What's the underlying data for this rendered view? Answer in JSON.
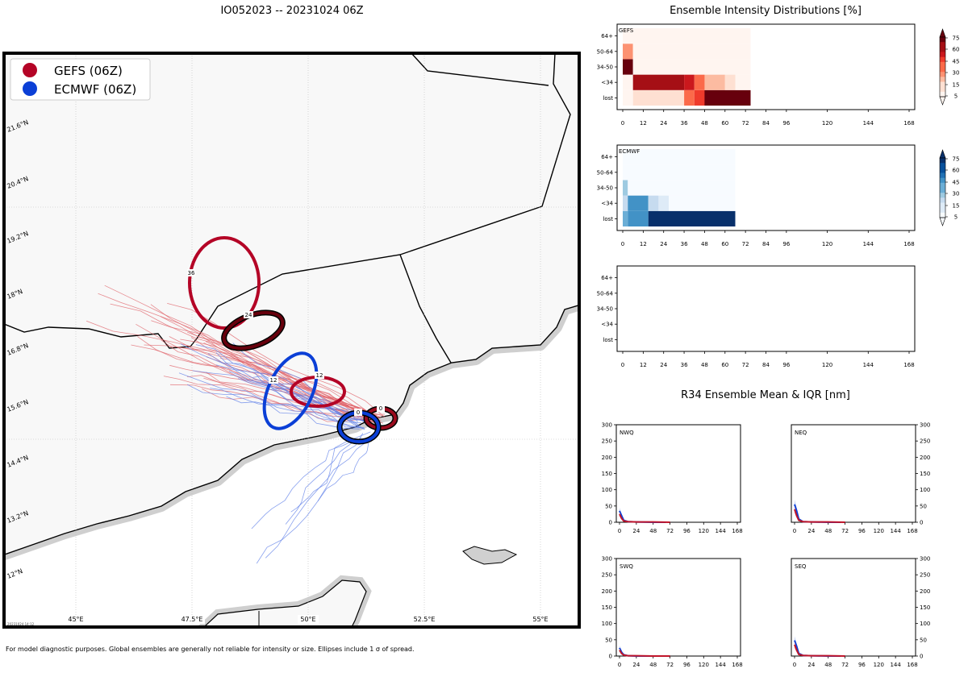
{
  "title": "IO052023 -- 20231024 06Z",
  "footer_note": "For model diagnostic purposes. Global ensembles are generally not reliable for intensity or size. Ellipses include 1 σ of spread.",
  "map": {
    "timestamp": "20231024 14:12",
    "legend": [
      {
        "label": "GEFS (06Z)",
        "color": "#b40426"
      },
      {
        "label": "ECMWF (06Z)",
        "color": "#0b3fd6"
      }
    ],
    "lat_labels": [
      "21.6°N",
      "20.4°N",
      "19.2°N",
      "18°N",
      "16.8°N",
      "15.6°N",
      "14.4°N",
      "13.2°N",
      "12°N"
    ],
    "lon_labels": [
      "45°E",
      "47.5°E",
      "50°E",
      "52.5°E",
      "55°E"
    ],
    "ellipse_labels": {
      "gefs": [
        "0",
        "12",
        "24",
        "36"
      ],
      "ecmwf": [
        "0",
        "12"
      ]
    }
  },
  "chart_data": [
    {
      "type": "heatmap",
      "title": "Ensemble Intensity Distributions [%]",
      "panel": "GEFS",
      "x_ticks": [
        "0",
        "12",
        "24",
        "36",
        "48",
        "60",
        "72",
        "84",
        "96",
        "120",
        "144",
        "168"
      ],
      "y_categories": [
        "lost",
        "<34",
        "34-50",
        "50-64",
        "64+"
      ],
      "colorbar_ticks": [
        "5",
        "15",
        "30",
        "45",
        "60",
        "75"
      ],
      "cmap": "Reds",
      "cells": [
        {
          "t0": 0,
          "t1": 6,
          "cat": "lost",
          "value": 2
        },
        {
          "t0": 6,
          "t1": 36,
          "cat": "lost",
          "value": 10
        },
        {
          "t0": 36,
          "t1": 42,
          "cat": "lost",
          "value": 55
        },
        {
          "t0": 42,
          "t1": 48,
          "cat": "lost",
          "value": 65
        },
        {
          "t0": 48,
          "t1": 75,
          "cat": "lost",
          "value": 95
        },
        {
          "t0": 0,
          "t1": 6,
          "cat": "<34",
          "value": 2
        },
        {
          "t0": 6,
          "t1": 36,
          "cat": "<34",
          "value": 90
        },
        {
          "t0": 36,
          "t1": 42,
          "cat": "<34",
          "value": 70
        },
        {
          "t0": 42,
          "t1": 48,
          "cat": "<34",
          "value": 55
        },
        {
          "t0": 48,
          "t1": 60,
          "cat": "<34",
          "value": 30
        },
        {
          "t0": 60,
          "t1": 66,
          "cat": "<34",
          "value": 12
        },
        {
          "t0": 66,
          "t1": 75,
          "cat": "<34",
          "value": 2
        },
        {
          "t0": 0,
          "t1": 6,
          "cat": "34-50",
          "value": 95
        },
        {
          "t0": 6,
          "t1": 75,
          "cat": "34-50",
          "value": 2
        },
        {
          "t0": 0,
          "t1": 6,
          "cat": "50-64",
          "value": 35
        },
        {
          "t0": 6,
          "t1": 75,
          "cat": "50-64",
          "value": 2
        },
        {
          "t0": 0,
          "t1": 75,
          "cat": "64+",
          "value": 2
        }
      ]
    },
    {
      "type": "heatmap",
      "panel": "ECMWF",
      "x_ticks": [
        "0",
        "12",
        "24",
        "36",
        "48",
        "60",
        "72",
        "84",
        "96",
        "120",
        "144",
        "168"
      ],
      "y_categories": [
        "lost",
        "<34",
        "34-50",
        "50-64",
        "64+"
      ],
      "colorbar_ticks": [
        "5",
        "15",
        "30",
        "45",
        "60",
        "75"
      ],
      "cmap": "Blues",
      "cells": [
        {
          "t0": 0,
          "t1": 3,
          "cat": "lost",
          "value": 45
        },
        {
          "t0": 3,
          "t1": 15,
          "cat": "lost",
          "value": 65
        },
        {
          "t0": 15,
          "t1": 66,
          "cat": "lost",
          "value": 95
        },
        {
          "t0": 0,
          "t1": 3,
          "cat": "<34",
          "value": 25
        },
        {
          "t0": 3,
          "t1": 15,
          "cat": "<34",
          "value": 65
        },
        {
          "t0": 15,
          "t1": 21,
          "cat": "<34",
          "value": 25
        },
        {
          "t0": 21,
          "t1": 27,
          "cat": "<34",
          "value": 12
        },
        {
          "t0": 27,
          "t1": 66,
          "cat": "<34",
          "value": 2
        },
        {
          "t0": 0,
          "t1": 3,
          "cat": "34-50",
          "value": 40
        },
        {
          "t0": 3,
          "t1": 66,
          "cat": "34-50",
          "value": 2
        },
        {
          "t0": 0,
          "t1": 66,
          "cat": "50-64",
          "value": 2
        },
        {
          "t0": 0,
          "t1": 66,
          "cat": "64+",
          "value": 2
        }
      ]
    },
    {
      "type": "heatmap",
      "panel": "",
      "x_ticks": [
        "0",
        "12",
        "24",
        "36",
        "48",
        "60",
        "72",
        "84",
        "96",
        "120",
        "144",
        "168"
      ],
      "y_categories": [
        "lost",
        "<34",
        "34-50",
        "50-64",
        "64+"
      ],
      "cells": []
    },
    {
      "type": "line",
      "title": "R34 Ensemble Mean & IQR [nm]",
      "x_ticks": [
        "0",
        "24",
        "48",
        "72",
        "96",
        "120",
        "144",
        "168"
      ],
      "ylim": [
        0,
        300
      ],
      "y_ticks": [
        "0",
        "50",
        "100",
        "150",
        "200",
        "250",
        "300"
      ],
      "quadrants": [
        {
          "name": "NWQ",
          "gefs": [
            [
              0,
              25
            ],
            [
              3,
              12
            ],
            [
              6,
              4
            ],
            [
              12,
              2
            ],
            [
              24,
              1
            ],
            [
              48,
              1
            ],
            [
              72,
              0
            ]
          ],
          "ecmwf": [
            [
              0,
              35
            ],
            [
              3,
              20
            ],
            [
              6,
              6
            ],
            [
              12,
              2
            ],
            [
              24,
              1
            ],
            [
              48,
              0
            ],
            [
              66,
              0
            ]
          ]
        },
        {
          "name": "NEQ",
          "gefs": [
            [
              0,
              40
            ],
            [
              3,
              20
            ],
            [
              6,
              6
            ],
            [
              12,
              2
            ],
            [
              24,
              1
            ],
            [
              48,
              1
            ],
            [
              72,
              0
            ]
          ],
          "ecmwf": [
            [
              0,
              55
            ],
            [
              3,
              35
            ],
            [
              6,
              10
            ],
            [
              12,
              2
            ],
            [
              24,
              1
            ],
            [
              48,
              0
            ],
            [
              66,
              0
            ]
          ]
        },
        {
          "name": "SWQ",
          "gefs": [
            [
              0,
              18
            ],
            [
              3,
              8
            ],
            [
              6,
              3
            ],
            [
              12,
              1
            ],
            [
              24,
              1
            ],
            [
              48,
              0
            ],
            [
              72,
              0
            ]
          ],
          "ecmwf": [
            [
              0,
              25
            ],
            [
              3,
              12
            ],
            [
              6,
              4
            ],
            [
              12,
              1
            ],
            [
              24,
              0
            ],
            [
              48,
              0
            ],
            [
              66,
              0
            ]
          ]
        },
        {
          "name": "SEQ",
          "gefs": [
            [
              0,
              35
            ],
            [
              3,
              18
            ],
            [
              6,
              5
            ],
            [
              12,
              2
            ],
            [
              24,
              1
            ],
            [
              48,
              1
            ],
            [
              72,
              0
            ]
          ],
          "ecmwf": [
            [
              0,
              48
            ],
            [
              3,
              30
            ],
            [
              6,
              8
            ],
            [
              12,
              2
            ],
            [
              24,
              1
            ],
            [
              48,
              0
            ],
            [
              66,
              0
            ]
          ]
        }
      ]
    }
  ]
}
